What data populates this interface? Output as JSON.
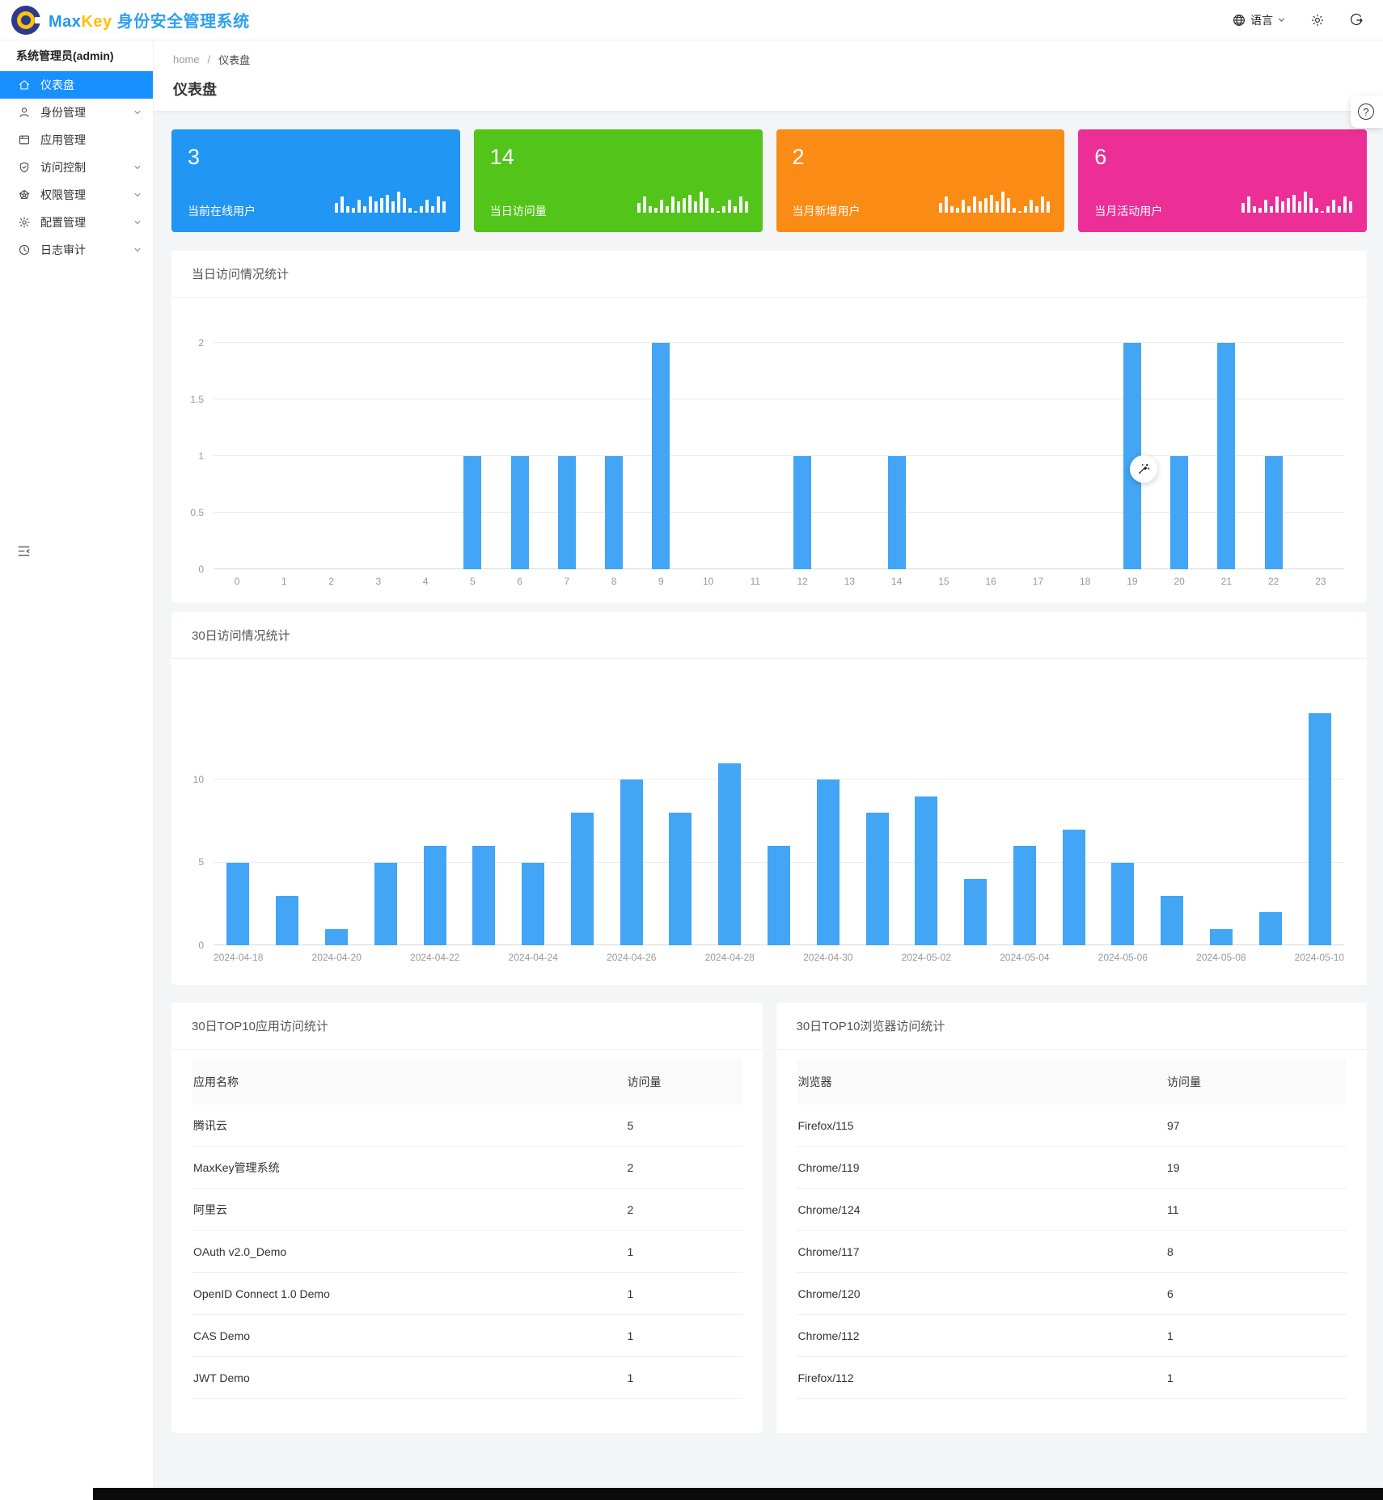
{
  "header": {
    "brand_max": "Max",
    "brand_key": "Key",
    "brand_title": "身份安全管理系统",
    "language_label": "语言"
  },
  "sidebar": {
    "user": "系统管理员(admin)",
    "items": [
      {
        "label": "仪表盘",
        "icon": "home-icon",
        "active": true,
        "expandable": false
      },
      {
        "label": "身份管理",
        "icon": "user-icon",
        "active": false,
        "expandable": true
      },
      {
        "label": "应用管理",
        "icon": "app-icon",
        "active": false,
        "expandable": false
      },
      {
        "label": "访问控制",
        "icon": "shield-icon",
        "active": false,
        "expandable": true
      },
      {
        "label": "权限管理",
        "icon": "gem-icon",
        "active": false,
        "expandable": true
      },
      {
        "label": "配置管理",
        "icon": "gear-icon",
        "active": false,
        "expandable": true
      },
      {
        "label": "日志审计",
        "icon": "clock-icon",
        "active": false,
        "expandable": true
      }
    ]
  },
  "breadcrumb": {
    "home": "home",
    "sep": "/",
    "current": "仪表盘"
  },
  "page_title": "仪表盘",
  "stat_sparkline": [
    6,
    10,
    4,
    3,
    8,
    4,
    10,
    7,
    9,
    11,
    7,
    13,
    9,
    3,
    1,
    4,
    8,
    4,
    10,
    7
  ],
  "stat_cards": [
    {
      "value": "3",
      "label": "当前在线用户",
      "color": "#2196f3"
    },
    {
      "value": "14",
      "label": "当日访问量",
      "color": "#52c41a"
    },
    {
      "value": "2",
      "label": "当月新增用户",
      "color": "#fa8c16"
    },
    {
      "value": "6",
      "label": "当月活动用户",
      "color": "#eb2f96"
    }
  ],
  "chart_data": [
    {
      "type": "bar",
      "title": "当日访问情况统计",
      "categories": [
        "0",
        "1",
        "2",
        "3",
        "4",
        "5",
        "6",
        "7",
        "8",
        "9",
        "10",
        "11",
        "12",
        "13",
        "14",
        "15",
        "16",
        "17",
        "18",
        "19",
        "20",
        "21",
        "22",
        "23"
      ],
      "values": [
        0,
        0,
        0,
        0,
        0,
        1,
        1,
        1,
        1,
        2,
        0,
        0,
        1,
        0,
        1,
        0,
        0,
        0,
        0,
        2,
        1,
        2,
        1,
        0
      ],
      "xlabel": "",
      "ylabel": "",
      "ylim": [
        0,
        2
      ],
      "yticks": [
        0,
        0.5,
        1,
        1.5,
        2
      ],
      "label_every": 1,
      "bar_color": "#42a5f5",
      "grid": true,
      "legend": "none"
    },
    {
      "type": "bar",
      "title": "30日访问情况统计",
      "categories": [
        "2024-04-18",
        "2024-04-19",
        "2024-04-20",
        "2024-04-21",
        "2024-04-22",
        "2024-04-23",
        "2024-04-24",
        "2024-04-25",
        "2024-04-26",
        "2024-04-27",
        "2024-04-28",
        "2024-04-29",
        "2024-04-30",
        "2024-05-01",
        "2024-05-02",
        "2024-05-03",
        "2024-05-04",
        "2024-05-05",
        "2024-05-06",
        "2024-05-07",
        "2024-05-08",
        "2024-05-09",
        "2024-05-10"
      ],
      "values": [
        5,
        3,
        1,
        5,
        6,
        6,
        5,
        8,
        10,
        8,
        11,
        6,
        10,
        8,
        9,
        4,
        6,
        7,
        5,
        3,
        1,
        2,
        14
      ],
      "xlabel": "",
      "ylabel": "",
      "ylim": [
        0,
        14
      ],
      "yticks": [
        0,
        5,
        10
      ],
      "label_every": 2,
      "bar_color": "#42a5f5",
      "grid": true,
      "legend": "none"
    }
  ],
  "tables": [
    {
      "title": "30日TOP10应用访问统计",
      "columns": [
        "应用名称",
        "访问量"
      ],
      "rows": [
        [
          "腾讯云",
          "5"
        ],
        [
          "MaxKey管理系统",
          "2"
        ],
        [
          "阿里云",
          "2"
        ],
        [
          "OAuth v2.0_Demo",
          "1"
        ],
        [
          "OpenID Connect 1.0 Demo",
          "1"
        ],
        [
          "CAS Demo",
          "1"
        ],
        [
          "JWT Demo",
          "1"
        ]
      ]
    },
    {
      "title": "30日TOP10浏览器访问统计",
      "columns": [
        "浏览器",
        "访问量"
      ],
      "rows": [
        [
          "Firefox/115",
          "97"
        ],
        [
          "Chrome/119",
          "19"
        ],
        [
          "Chrome/124",
          "11"
        ],
        [
          "Chrome/117",
          "8"
        ],
        [
          "Chrome/120",
          "6"
        ],
        [
          "Chrome/112",
          "1"
        ],
        [
          "Firefox/112",
          "1"
        ]
      ]
    }
  ],
  "floating": {
    "help_label": "?"
  }
}
